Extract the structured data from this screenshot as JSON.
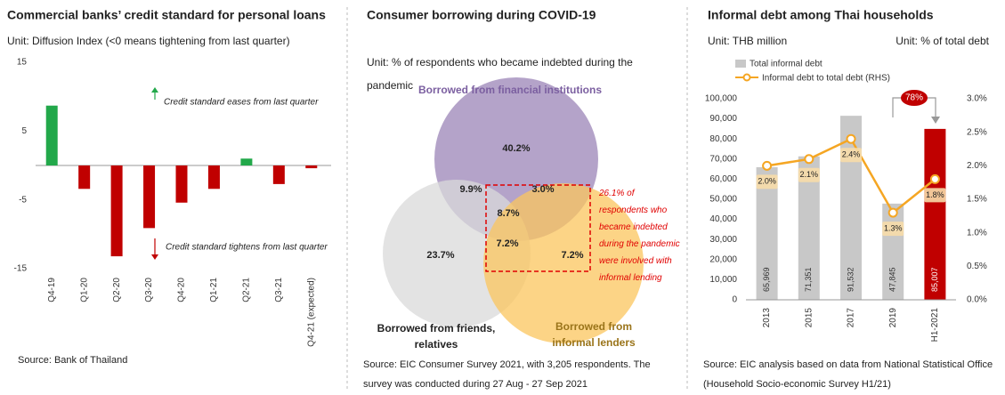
{
  "chart_data": [
    {
      "type": "bar",
      "title": "Commercial banks’ credit standard for personal loans",
      "subtitle": "Unit: Diffusion Index (<0 means tightening from last quarter)",
      "categories": [
        "Q4-19",
        "Q1-20",
        "Q2-20",
        "Q3-20",
        "Q4-20",
        "Q1-21",
        "Q2-21",
        "Q3-21",
        "Q4-21 (expected)"
      ],
      "values": [
        8.7,
        -3.4,
        -13.2,
        -9.1,
        -5.4,
        -3.4,
        1.0,
        -2.7,
        -0.4
      ],
      "colors": [
        "#22a84a",
        "#c00000",
        "#c00000",
        "#c00000",
        "#c00000",
        "#c00000",
        "#22a84a",
        "#c00000",
        "#c00000"
      ],
      "ylim": [
        -15,
        15
      ],
      "yticks": [
        -15,
        -5,
        5,
        15
      ],
      "grid": false,
      "annotations": [
        "Credit standard eases from last quarter",
        "Credit standard tightens from last quarter"
      ],
      "source": "Source: Bank of Thailand"
    },
    {
      "type": "venn",
      "title": "Consumer borrowing during COVID-19",
      "subtitle": "Unit: % of respondents who became indebted during the pandemic",
      "sets": [
        {
          "name": "Borrowed from financial institutions",
          "color": "#9b84b7"
        },
        {
          "name": "Borrowed from friends, relatives",
          "color": "#d9d9d9"
        },
        {
          "name": "Borrowed from informal lenders",
          "color": "#fbc55d"
        }
      ],
      "values": [
        40.2,
        9.9,
        3.0,
        8.7,
        23.7,
        7.2,
        7.2
      ],
      "value_labels": [
        "40.2%",
        "9.9%",
        "3.0%",
        "8.7%",
        "23.7%",
        "7.2%",
        "7.2%"
      ],
      "annotation": "26.1% of respondents who became indebted during the pandemic were involved with informal lending",
      "source": "Source: EIC Consumer Survey 2021, with 3,205 respondents. The survey was conducted during 27 Aug - 27 Sep 2021"
    },
    {
      "type": "bar-line",
      "title": "Informal debt among Thai households",
      "ylabel": "Unit: THB million",
      "y2label": "Unit: % of total debt",
      "categories": [
        "2013",
        "2015",
        "2017",
        "2019",
        "H1-2021"
      ],
      "series": [
        {
          "name": "Total informal debt",
          "type": "bar",
          "color": "#c8c8c8",
          "colors": [
            "#c8c8c8",
            "#c8c8c8",
            "#c8c8c8",
            "#c8c8c8",
            "#c00000"
          ],
          "values": [
            65969,
            71351,
            91532,
            47845,
            85007
          ],
          "value_labels": [
            "65,969",
            "71,351",
            "91,532",
            "47,845",
            "85,007"
          ]
        },
        {
          "name": "Informal debt to total debt (RHS)",
          "type": "line",
          "axis": "y2",
          "color": "#f5a623",
          "values": [
            2.0,
            2.1,
            2.4,
            1.3,
            1.8
          ],
          "value_labels": [
            "2.0%",
            "2.1%",
            "2.4%",
            "1.3%",
            "1.8%"
          ]
        }
      ],
      "ylim": [
        0,
        100000
      ],
      "yticks": [
        0,
        {
          "value": 10000,
          "label": "10,000"
        },
        {
          "value": 20000,
          "label": "20,000"
        },
        {
          "value": 30000,
          "label": "30,000"
        },
        {
          "value": 40000,
          "label": "40,000"
        },
        {
          "value": 50000,
          "label": "50,000"
        },
        {
          "value": 60000,
          "label": "60,000"
        },
        {
          "value": 70000,
          "label": "70,000"
        },
        {
          "value": 80000,
          "label": "80,000"
        },
        {
          "value": 90000,
          "label": "90,000"
        },
        {
          "value": 100000,
          "label": "100,000"
        }
      ],
      "y2lim": [
        0,
        3.0
      ],
      "y2ticks": [
        {
          "value": 0,
          "label": "0.0%"
        },
        {
          "value": 0.5,
          "label": "0.5%"
        },
        {
          "value": 1.0,
          "label": "1.0%"
        },
        {
          "value": 1.5,
          "label": "1.5%"
        },
        {
          "value": 2.0,
          "label": "2.0%"
        },
        {
          "value": 2.5,
          "label": "2.5%"
        },
        {
          "value": 3.0,
          "label": "3.0%"
        }
      ],
      "annotation": "78%",
      "source": "Source: EIC analysis based on data from National Statistical Office (Household Socio-economic Survey H1/21)"
    }
  ]
}
